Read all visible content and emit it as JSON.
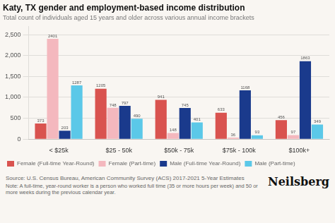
{
  "chart_data": {
    "type": "bar",
    "title": "Katy, TX gender and employment-based income distribution",
    "subtitle": "Total count of individuals aged 15 years and older across various annual income brackets",
    "categories": [
      "< $25k",
      "$25 - 50k",
      "$50k - 75k",
      "$75k - 100k",
      "$100k+"
    ],
    "series": [
      {
        "name": "Female (Full-time Year-Round)",
        "color": "#d9534f",
        "values": [
          373,
          1205,
          941,
          633,
          456
        ]
      },
      {
        "name": "Female (Part-time)",
        "color": "#f4b8be",
        "values": [
          2401,
          748,
          148,
          36,
          97
        ]
      },
      {
        "name": "Male (Full-time Year-Round)",
        "color": "#1a3a8c",
        "values": [
          203,
          797,
          745,
          1168,
          1863
        ]
      },
      {
        "name": "Male (Part-time)",
        "color": "#5bc8e8",
        "values": [
          1287,
          490,
          401,
          93,
          349
        ]
      }
    ],
    "ylim": [
      0,
      2700
    ],
    "yticks": [
      0,
      500,
      1000,
      1500,
      2000,
      2500
    ],
    "grid": true,
    "legend": "bottom",
    "data_labels": true,
    "annotations": [
      "Source: U.S. Census Bureau, American Community Survey (ACS) 2017-2021 5-Year Estimates",
      "Note: A full-time, year-round worker is a person who worked full time (35 or more hours per week) and 50 or more weeks during the previous calendar year.",
      "Neilsberg"
    ]
  }
}
